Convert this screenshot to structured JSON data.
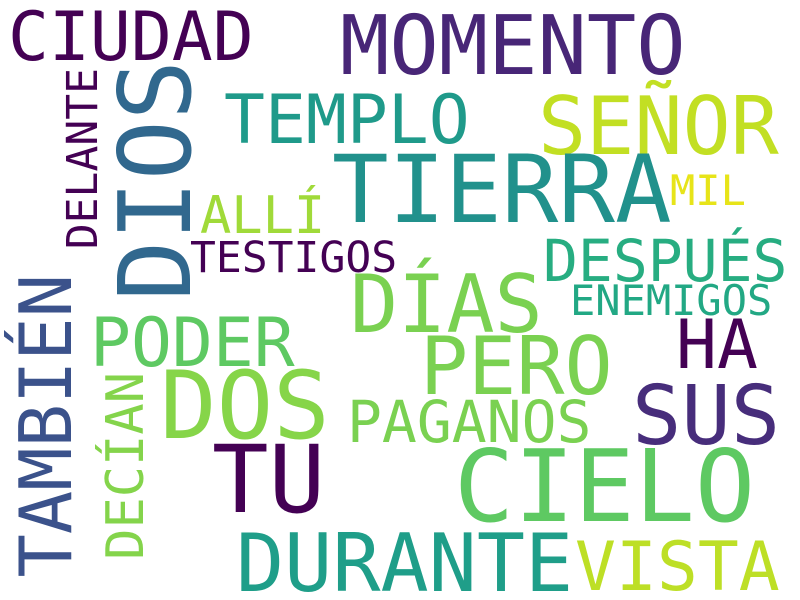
{
  "word_cloud": {
    "words": [
      {
        "key": "ciudad",
        "text": "CIUDAD",
        "color": "#440154"
      },
      {
        "key": "momento",
        "text": "MOMENTO",
        "color": "#482677"
      },
      {
        "key": "dios",
        "text": "DIOS",
        "color": "#31688e"
      },
      {
        "key": "delante",
        "text": "DELANTE",
        "color": "#440154"
      },
      {
        "key": "templo",
        "text": "TEMPLO",
        "color": "#1f9a8a"
      },
      {
        "key": "senor",
        "text": "SEÑOR",
        "color": "#c2df23"
      },
      {
        "key": "tierra",
        "text": "TIERRA",
        "color": "#21918c"
      },
      {
        "key": "alli",
        "text": "ALLÍ",
        "color": "#a0da39"
      },
      {
        "key": "mil",
        "text": "MIL",
        "color": "#e7e419"
      },
      {
        "key": "testigos",
        "text": "TESTIGOS",
        "color": "#440154"
      },
      {
        "key": "despues",
        "text": "DESPUÉS",
        "color": "#27ad81"
      },
      {
        "key": "dias",
        "text": "DÍAS",
        "color": "#7ad151"
      },
      {
        "key": "enemigos",
        "text": "ENEMIGOS",
        "color": "#22a884"
      },
      {
        "key": "tambien",
        "text": "TAMBIÉN",
        "color": "#3b528b"
      },
      {
        "key": "poder",
        "text": "PODER",
        "color": "#5ec962"
      },
      {
        "key": "ha",
        "text": "HA",
        "color": "#440154"
      },
      {
        "key": "pero",
        "text": "PERO",
        "color": "#7ad151"
      },
      {
        "key": "dos",
        "text": "DOS",
        "color": "#86d549"
      },
      {
        "key": "sus",
        "text": "SUS",
        "color": "#472d7b"
      },
      {
        "key": "decian",
        "text": "DECÍAN",
        "color": "#84d44b"
      },
      {
        "key": "paganos",
        "text": "PAGANOS",
        "color": "#7ad151"
      },
      {
        "key": "tu",
        "text": "TU",
        "color": "#440154"
      },
      {
        "key": "cielo",
        "text": "CIELO",
        "color": "#5ec962"
      },
      {
        "key": "durante",
        "text": "DURANTE",
        "color": "#1f9e89"
      },
      {
        "key": "vista",
        "text": "VISTA",
        "color": "#bddf26"
      }
    ]
  }
}
